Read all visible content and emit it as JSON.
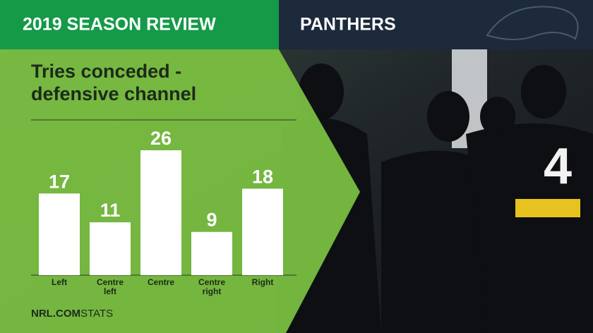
{
  "header": {
    "left_title": "2019 SEASON REVIEW",
    "right_title": "PANTHERS"
  },
  "chart_data": {
    "type": "bar",
    "title": "Tries conceded - defensive channel",
    "categories": [
      "Left",
      "Centre left",
      "Centre",
      "Centre right",
      "Right"
    ],
    "values": [
      17,
      11,
      26,
      9,
      18
    ],
    "color": "#ffffff",
    "ylim": [
      0,
      26
    ]
  },
  "footer": {
    "brand": "NRL.COM",
    "suffix": "STATS"
  }
}
